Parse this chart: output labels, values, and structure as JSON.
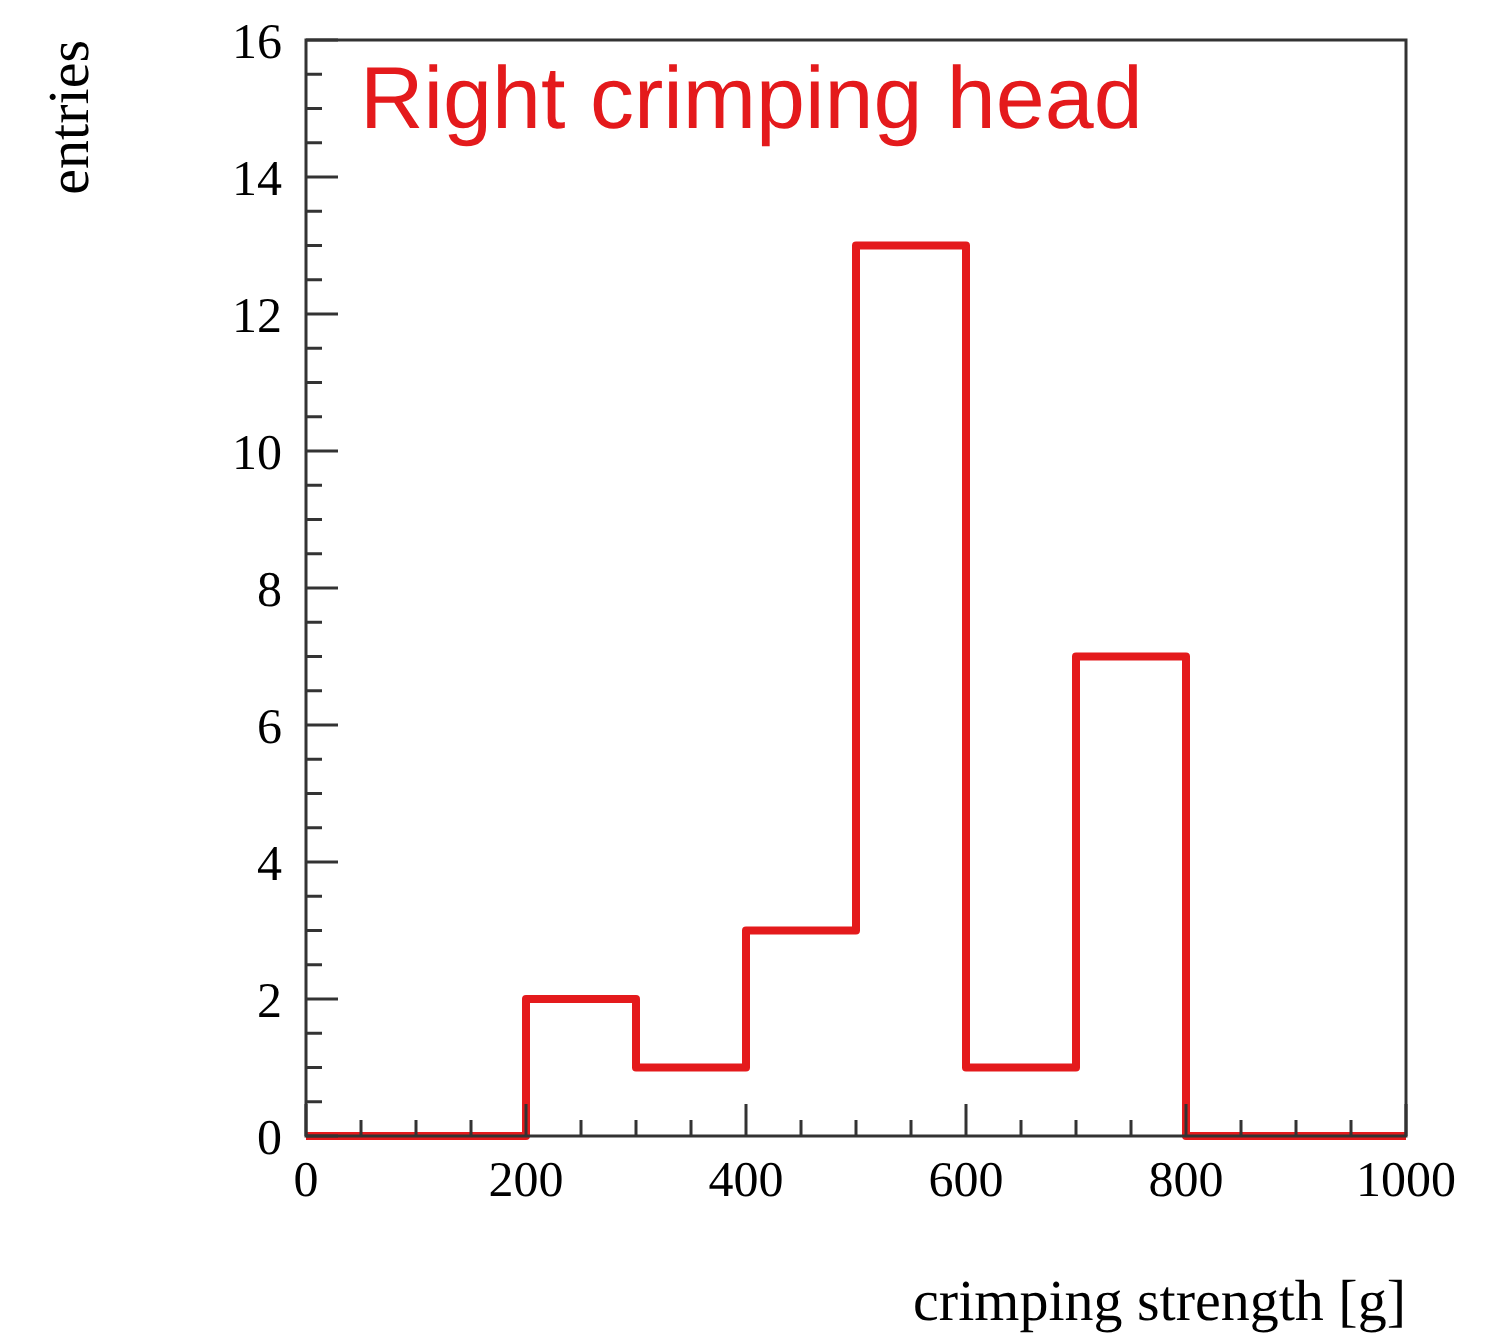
{
  "chart_data": {
    "type": "histogram",
    "title": "Right crimping head",
    "xlabel": "crimping strength [g]",
    "ylabel": "entries",
    "color": "#e41a1c",
    "bins": [
      0,
      100,
      200,
      300,
      400,
      500,
      600,
      700,
      800,
      900,
      1000
    ],
    "values": [
      0,
      0,
      2,
      1,
      3,
      13,
      1,
      7,
      0,
      0
    ],
    "xlim": [
      0,
      1000
    ],
    "ylim": [
      0,
      16
    ],
    "xticks": [
      0,
      {
        "value": 50,
        "label": null
      },
      {
        "value": 100,
        "label": null
      },
      {
        "value": 150,
        "label": null
      },
      200,
      {
        "value": 250,
        "label": null
      },
      {
        "value": 300,
        "label": null
      },
      {
        "value": 350,
        "label": null
      },
      400,
      {
        "value": 450,
        "label": null
      },
      {
        "value": 500,
        "label": null
      },
      {
        "value": 550,
        "label": null
      },
      600,
      {
        "value": 650,
        "label": null
      },
      {
        "value": 700,
        "label": null
      },
      {
        "value": 750,
        "label": null
      },
      800,
      {
        "value": 850,
        "label": null
      },
      {
        "value": 900,
        "label": null
      },
      {
        "value": 950,
        "label": null
      },
      1000
    ],
    "yticks": [
      0,
      {
        "value": 0.5,
        "label": null
      },
      {
        "value": 1,
        "label": null
      },
      {
        "value": 1.5,
        "label": null
      },
      2,
      {
        "value": 2.5,
        "label": null
      },
      {
        "value": 3,
        "label": null
      },
      {
        "value": 3.5,
        "label": null
      },
      4,
      {
        "value": 4.5,
        "label": null
      },
      {
        "value": 5,
        "label": null
      },
      {
        "value": 5.5,
        "label": null
      },
      6,
      {
        "value": 6.5,
        "label": null
      },
      {
        "value": 7,
        "label": null
      },
      {
        "value": 7.5,
        "label": null
      },
      8,
      {
        "value": 8.5,
        "label": null
      },
      {
        "value": 9,
        "label": null
      },
      {
        "value": 9.5,
        "label": null
      },
      10,
      {
        "value": 10.5,
        "label": null
      },
      {
        "value": 11,
        "label": null
      },
      {
        "value": 11.5,
        "label": null
      },
      12,
      {
        "value": 12.5,
        "label": null
      },
      {
        "value": 13,
        "label": null
      },
      {
        "value": 13.5,
        "label": null
      },
      14,
      {
        "value": 14.5,
        "label": null
      },
      {
        "value": 15,
        "label": null
      },
      {
        "value": 15.5,
        "label": null
      },
      16
    ],
    "tick_labels": "xy"
  }
}
